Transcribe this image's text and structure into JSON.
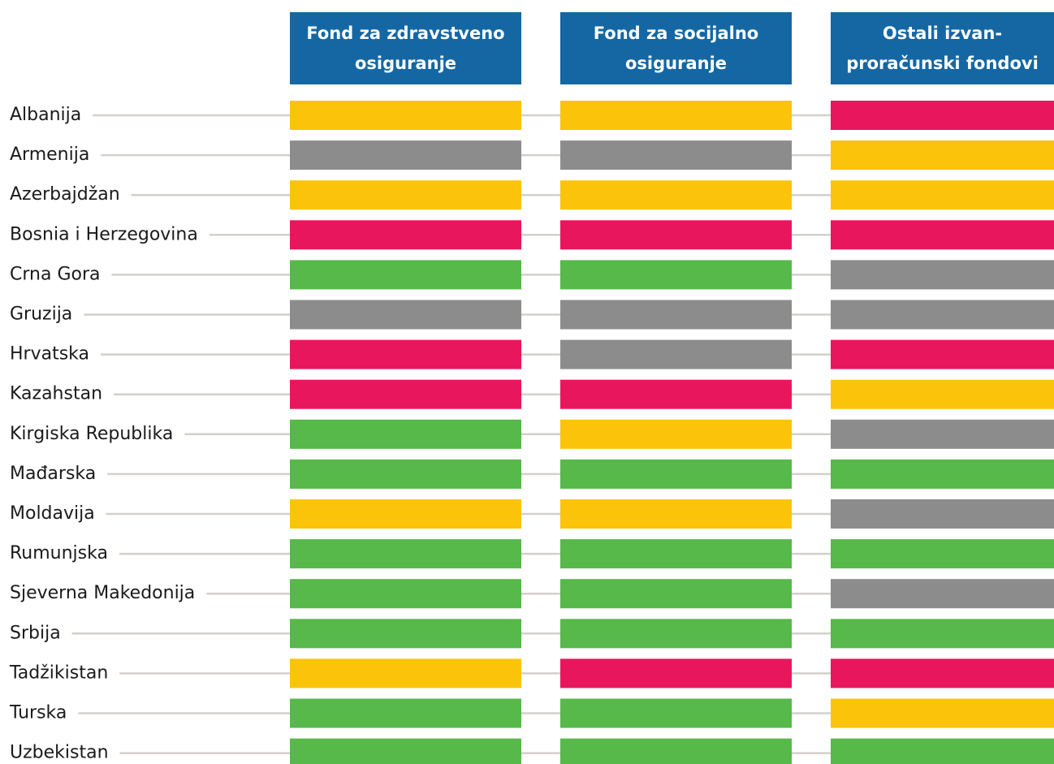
{
  "table": {
    "columns": [
      {
        "lines": [
          "Fond za zdravstveno",
          "osiguranje"
        ]
      },
      {
        "lines": [
          "Fond za socijalno",
          "osiguranje"
        ]
      },
      {
        "lines": [
          "Ostali izvan-",
          "proračunski fondovi"
        ]
      }
    ],
    "header_color": "#1467a3",
    "rows": [
      {
        "label": "Albanija",
        "cells": [
          "#fcc30b",
          "#fcc30b",
          "#e8175d"
        ]
      },
      {
        "label": "Armenija",
        "cells": [
          "#8c8c8c",
          "#8c8c8c",
          "#fcc30b"
        ]
      },
      {
        "label": "Azerbajdžan",
        "cells": [
          "#fcc30b",
          "#fcc30b",
          "#fcc30b"
        ]
      },
      {
        "label": "Bosnia i Herzegovina",
        "cells": [
          "#e8175d",
          "#e8175d",
          "#e8175d"
        ]
      },
      {
        "label": "Crna Gora",
        "cells": [
          "#56b949",
          "#56b949",
          "#8c8c8c"
        ]
      },
      {
        "label": "Gruzija",
        "cells": [
          "#8c8c8c",
          "#8c8c8c",
          "#8c8c8c"
        ]
      },
      {
        "label": "Hrvatska",
        "cells": [
          "#e8175d",
          "#8c8c8c",
          "#e8175d"
        ]
      },
      {
        "label": "Kazahstan",
        "cells": [
          "#e8175d",
          "#e8175d",
          "#fcc30b"
        ]
      },
      {
        "label": "Kirgiska Republika",
        "cells": [
          "#56b949",
          "#fcc30b",
          "#8c8c8c"
        ]
      },
      {
        "label": "Mađarska",
        "cells": [
          "#56b949",
          "#56b949",
          "#56b949"
        ]
      },
      {
        "label": "Moldavija",
        "cells": [
          "#fcc30b",
          "#fcc30b",
          "#8c8c8c"
        ]
      },
      {
        "label": "Rumunjska",
        "cells": [
          "#56b949",
          "#56b949",
          "#56b949"
        ]
      },
      {
        "label": "Sjeverna Makedonija",
        "cells": [
          "#56b949",
          "#56b949",
          "#8c8c8c"
        ]
      },
      {
        "label": "Srbija",
        "cells": [
          "#56b949",
          "#56b949",
          "#56b949"
        ]
      },
      {
        "label": "Tadžikistan",
        "cells": [
          "#fcc30b",
          "#e8175d",
          "#e8175d"
        ]
      },
      {
        "label": "Turska",
        "cells": [
          "#56b949",
          "#56b949",
          "#fcc30b"
        ]
      },
      {
        "label": "Uzbekistan",
        "cells": [
          "#56b949",
          "#56b949",
          "#56b949"
        ]
      }
    ]
  }
}
